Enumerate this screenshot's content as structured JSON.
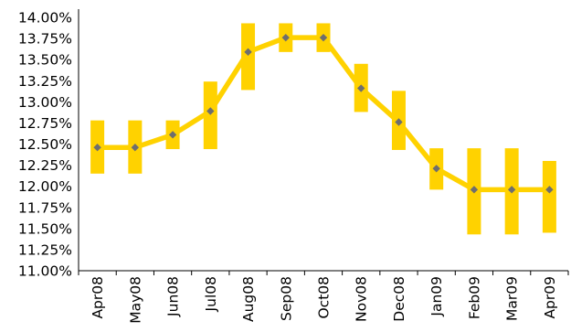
{
  "chart_data": {
    "type": "line",
    "title": "",
    "xlabel": "",
    "ylabel": "",
    "categories": [
      "Apr08",
      "May08",
      "Jun08",
      "Jul08",
      "Aug08",
      "Sep08",
      "Oct08",
      "Nov08",
      "Dec08",
      "Jan09",
      "Feb09",
      "Mar09",
      "Apr09"
    ],
    "y_tick_labels": [
      "11.00%",
      "11.25%",
      "11.50%",
      "11.75%",
      "12.00%",
      "12.25%",
      "12.50%",
      "12.75%",
      "13.00%",
      "13.25%",
      "13.50%",
      "13.75%",
      "14.00%"
    ],
    "ylim": [
      11.0,
      14.0
    ],
    "y_unit": "%",
    "grid": false,
    "series": [
      {
        "values": [
          12.46,
          12.46,
          12.61,
          12.89,
          13.59,
          13.76,
          13.76,
          13.16,
          12.76,
          12.21,
          11.96,
          11.96,
          11.96
        ],
        "range_low": [
          12.15,
          12.15,
          12.44,
          12.44,
          13.14,
          13.59,
          13.59,
          12.88,
          12.43,
          11.96,
          11.43,
          11.43,
          11.45
        ],
        "range_high": [
          12.78,
          12.78,
          12.78,
          13.24,
          13.93,
          13.93,
          13.93,
          13.45,
          13.13,
          12.45,
          12.45,
          12.45,
          12.3
        ]
      }
    ],
    "colors": {
      "line": "#FFD200",
      "range_bar": "#FFD200",
      "marker": "#6E6E6E",
      "axis": "#000000"
    }
  }
}
